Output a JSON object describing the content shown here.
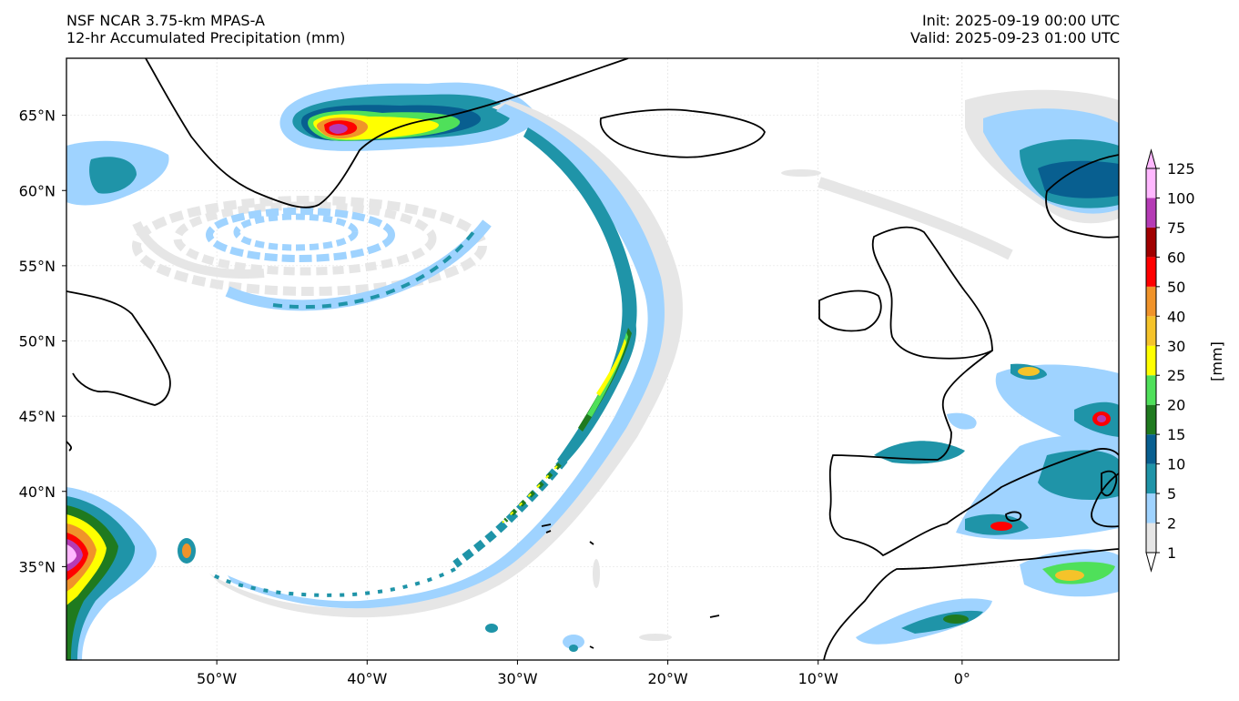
{
  "header": {
    "title_line1": "NSF NCAR 3.75-km MPAS-A",
    "title_line2": "12-hr Accumulated Precipitation (mm)",
    "init": "Init: 2025-09-19 00:00 UTC",
    "valid": "Valid: 2025-09-23 01:00 UTC"
  },
  "map": {
    "lon_range": [
      -60,
      10
    ],
    "lat_range": [
      30,
      70
    ],
    "lat_ticks": [
      {
        "value": 65,
        "label": "65°N"
      },
      {
        "value": 60,
        "label": "60°N"
      },
      {
        "value": 55,
        "label": "55°N"
      },
      {
        "value": 50,
        "label": "50°N"
      },
      {
        "value": 45,
        "label": "45°N"
      },
      {
        "value": 40,
        "label": "40°N"
      },
      {
        "value": 35,
        "label": "35°N"
      }
    ],
    "lon_ticks": [
      {
        "value": -50,
        "label": "50°W"
      },
      {
        "value": -40,
        "label": "40°W"
      },
      {
        "value": -30,
        "label": "30°W"
      },
      {
        "value": -20,
        "label": "20°W"
      },
      {
        "value": -10,
        "label": "10°W"
      },
      {
        "value": 0,
        "label": "0°"
      }
    ],
    "gridlines": true
  },
  "colorbar": {
    "unit_label": "[mm]",
    "levels": [
      {
        "value": "1",
        "color": "#e6e6e6"
      },
      {
        "value": "2",
        "color": "#9fd3ff"
      },
      {
        "value": "5",
        "color": "#1f94a8"
      },
      {
        "value": "10",
        "color": "#085f90"
      },
      {
        "value": "15",
        "color": "#1f7a1f"
      },
      {
        "value": "20",
        "color": "#4fe05a"
      },
      {
        "value": "25",
        "color": "#ffff00"
      },
      {
        "value": "30",
        "color": "#f5c32a"
      },
      {
        "value": "40",
        "color": "#f0932a"
      },
      {
        "value": "50",
        "color": "#ff0000"
      },
      {
        "value": "60",
        "color": "#a00000"
      },
      {
        "value": "75",
        "color": "#b53bb5"
      },
      {
        "value": "100",
        "color": "#ffb8ff"
      },
      {
        "value": "125",
        "color": null
      }
    ],
    "extend": "both"
  }
}
